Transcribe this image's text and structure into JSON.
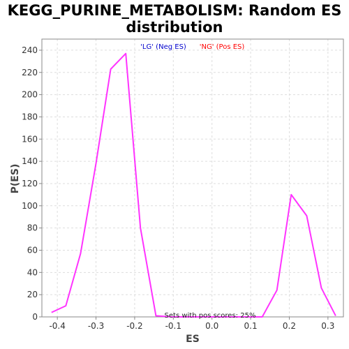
{
  "chart_data": {
    "type": "line",
    "title_lines": [
      "KEGG_PURINE_METABOLISM: Random ES",
      "distribution"
    ],
    "xlabel": "ES",
    "ylabel": "P(ES)",
    "xlim": [
      -0.44,
      0.34
    ],
    "ylim": [
      0,
      250
    ],
    "xticks": [
      -0.4,
      -0.3,
      -0.2,
      -0.1,
      0.0,
      0.1,
      0.2,
      0.3
    ],
    "xtick_labels": [
      "-0.4",
      "-0.3",
      "-0.2",
      "-0.1",
      "0.0",
      "0.1",
      "0.2",
      "0.3"
    ],
    "yticks": [
      0,
      20,
      40,
      60,
      80,
      100,
      120,
      140,
      160,
      180,
      200,
      220,
      240
    ],
    "grid": true,
    "legend": {
      "neg_label": "'LG' (Neg ES)",
      "pos_label": "'NG' (Pos ES)",
      "neg_color": "#0000cc",
      "pos_color": "#ff0000",
      "placement": "top-center"
    },
    "annotation": "Sets with pos scores: 25%",
    "series_color": "#ff33ff",
    "series": [
      {
        "x": [
          -0.415,
          -0.378,
          -0.34,
          -0.3,
          -0.262,
          -0.223,
          -0.185,
          -0.145,
          -0.105,
          -0.068,
          -0.03,
          0.01,
          0.05,
          0.09,
          0.13,
          0.168,
          0.205,
          0.245,
          0.283,
          0.32
        ],
        "y": [
          4,
          10,
          57,
          138,
          223,
          237,
          80,
          1,
          0,
          0,
          0,
          0,
          0,
          0,
          0,
          24,
          110,
          91,
          26,
          1
        ]
      }
    ]
  }
}
